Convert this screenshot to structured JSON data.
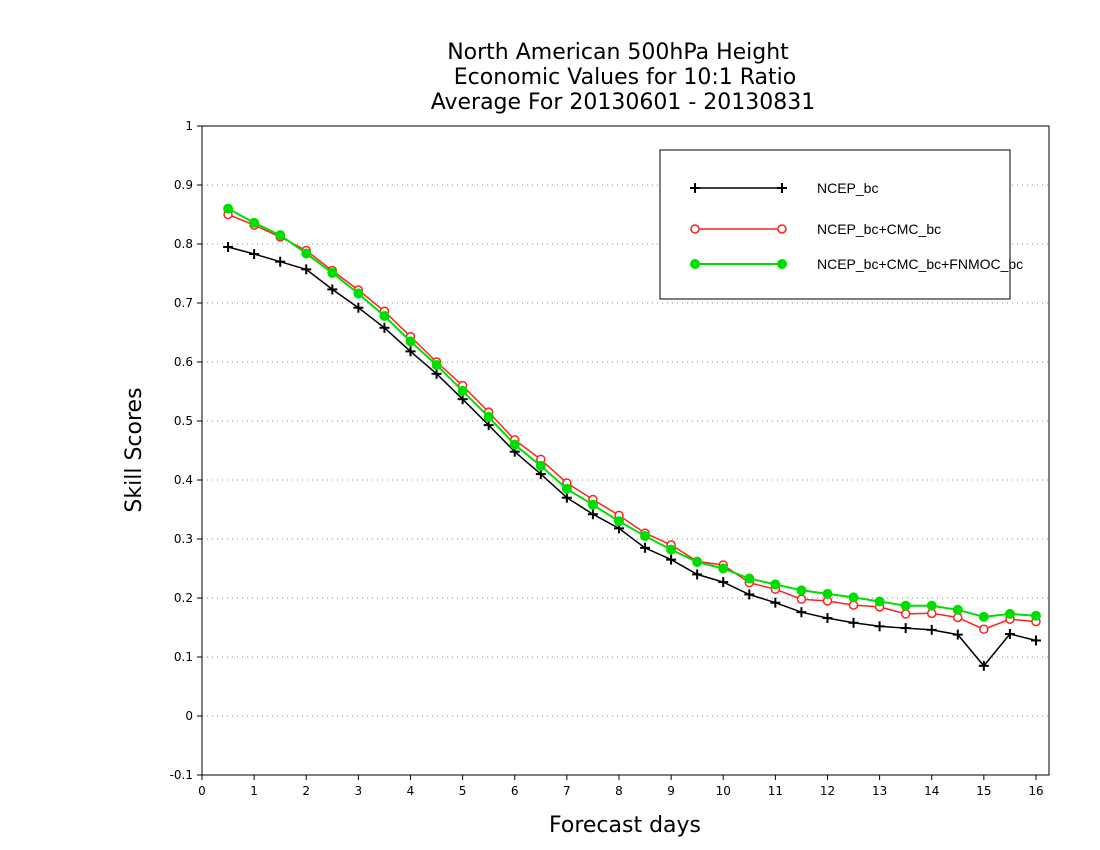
{
  "chart_data": {
    "type": "line",
    "title": [
      "North American 500hPa Height",
      "Economic Values for 10:1 Ratio",
      "Average For 20130601 - 20130831"
    ],
    "xlabel": "Forecast days",
    "ylabel": "Skill Scores",
    "xlim": [
      0,
      16.25
    ],
    "ylim": [
      -0.1,
      1
    ],
    "xticks": [
      "0",
      "1",
      "2",
      "3",
      "4",
      "5",
      "6",
      "7",
      "8",
      "9",
      "10",
      "11",
      "12",
      "13",
      "14",
      "15",
      "16"
    ],
    "yticks": [
      "-0.1",
      "0",
      "0.1",
      "0.2",
      "0.3",
      "0.4",
      "0.5",
      "0.6",
      "0.7",
      "0.8",
      "0.9",
      "1"
    ],
    "grid": "horizontal dotted",
    "legend_position": "top-right",
    "x": [
      0.5,
      1,
      1.5,
      2,
      2.5,
      3,
      3.5,
      4,
      4.5,
      5,
      5.5,
      6,
      6.5,
      7,
      7.5,
      8,
      8.5,
      9,
      9.5,
      10,
      10.5,
      11,
      11.5,
      12,
      12.5,
      13,
      13.5,
      14,
      14.5,
      15,
      15.5,
      16
    ],
    "series": [
      {
        "name": "NCEP_bc",
        "color": "#000000",
        "marker": "plus",
        "values": [
          0.795,
          0.783,
          0.77,
          0.757,
          0.723,
          0.692,
          0.658,
          0.618,
          0.58,
          0.537,
          0.493,
          0.448,
          0.41,
          0.37,
          0.342,
          0.318,
          0.285,
          0.265,
          0.24,
          0.227,
          0.206,
          0.192,
          0.176,
          0.166,
          0.158,
          0.152,
          0.149,
          0.146,
          0.138,
          0.085,
          0.139,
          0.128
        ]
      },
      {
        "name": "NCEP_bc+CMC_bc",
        "color": "#ff2020",
        "marker": "open-circle",
        "values": [
          0.85,
          0.832,
          0.812,
          0.789,
          0.755,
          0.722,
          0.686,
          0.643,
          0.6,
          0.56,
          0.515,
          0.468,
          0.435,
          0.395,
          0.367,
          0.34,
          0.31,
          0.29,
          0.262,
          0.256,
          0.226,
          0.215,
          0.198,
          0.195,
          0.188,
          0.185,
          0.173,
          0.174,
          0.167,
          0.147,
          0.164,
          0.16
        ]
      },
      {
        "name": "NCEP_bc+CMC_bc+FNMOC_bc",
        "color": "#00dd00",
        "marker": "filled-circle",
        "values": [
          0.86,
          0.836,
          0.815,
          0.784,
          0.751,
          0.716,
          0.678,
          0.635,
          0.595,
          0.551,
          0.507,
          0.46,
          0.424,
          0.385,
          0.358,
          0.33,
          0.305,
          0.282,
          0.261,
          0.25,
          0.233,
          0.223,
          0.213,
          0.207,
          0.201,
          0.194,
          0.187,
          0.187,
          0.18,
          0.168,
          0.173,
          0.17
        ]
      }
    ]
  }
}
